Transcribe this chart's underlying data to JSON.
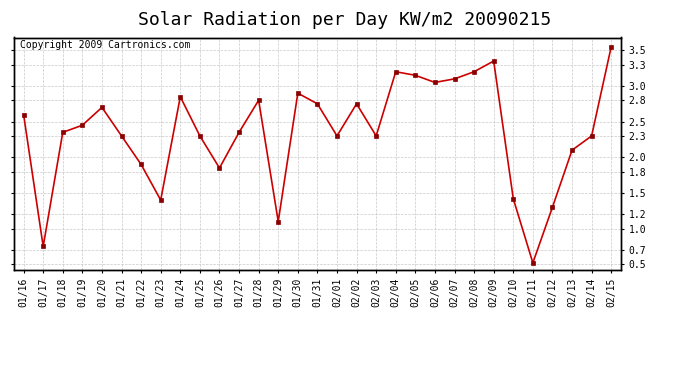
{
  "title": "Solar Radiation per Day KW/m2 20090215",
  "copyright": "Copyright 2009 Cartronics.com",
  "labels": [
    "01/16",
    "01/17",
    "01/18",
    "01/19",
    "01/20",
    "01/21",
    "01/22",
    "01/23",
    "01/24",
    "01/25",
    "01/26",
    "01/27",
    "01/28",
    "01/29",
    "01/30",
    "01/31",
    "02/01",
    "02/02",
    "02/03",
    "02/04",
    "02/05",
    "02/06",
    "02/07",
    "02/08",
    "02/09",
    "02/10",
    "02/11",
    "02/12",
    "02/13",
    "02/14",
    "02/15"
  ],
  "values": [
    2.6,
    0.75,
    2.35,
    2.45,
    2.7,
    2.3,
    1.9,
    1.4,
    2.85,
    2.3,
    1.85,
    2.35,
    2.8,
    1.1,
    2.9,
    2.75,
    2.3,
    2.75,
    2.3,
    3.2,
    3.15,
    3.05,
    3.1,
    3.2,
    3.35,
    1.42,
    0.52,
    1.3,
    2.1,
    2.3,
    3.55
  ],
  "line_color": "#cc0000",
  "marker_color": "#880000",
  "bg_color": "#ffffff",
  "grid_color": "#bbbbbb",
  "yticks": [
    0.5,
    0.7,
    1.0,
    1.2,
    1.5,
    1.8,
    2.0,
    2.3,
    2.5,
    2.8,
    3.0,
    3.3,
    3.5
  ],
  "ylim": [
    0.42,
    3.68
  ],
  "title_fontsize": 13,
  "copyright_fontsize": 7,
  "tick_fontsize": 7,
  "xlabel_fontsize": 7
}
